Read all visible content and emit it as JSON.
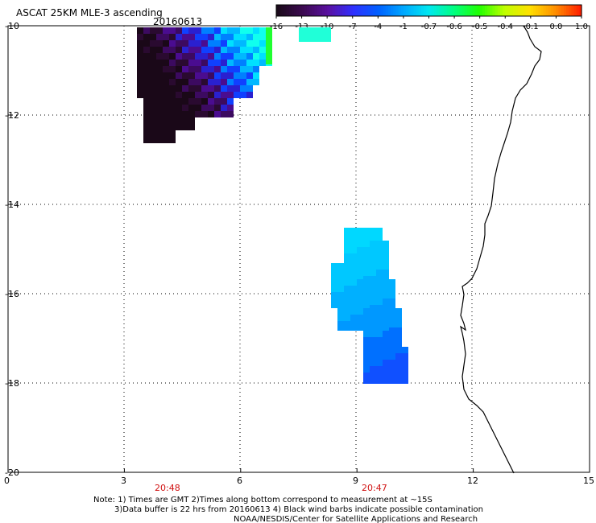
{
  "header": {
    "title": "ASCAT 25KM MLE-3 ascending",
    "date": "20160613"
  },
  "colorbar": {
    "labels": [
      "-16",
      "-13",
      "-10",
      "-7",
      "-4",
      "-1",
      "-0.7",
      "-0.6",
      "-0.5",
      "-0.4",
      "-0.1",
      "0.0",
      "1.0"
    ],
    "colors": [
      "#1a0a1a",
      "#3c0a50",
      "#5a10a0",
      "#3030ff",
      "#0060ff",
      "#00a8ff",
      "#00e8f0",
      "#00ff80",
      "#20ff00",
      "#c0ff00",
      "#ffe000",
      "#ff9000",
      "#ff2000"
    ]
  },
  "axes": {
    "y_ticks": [
      "-10",
      "-12",
      "-14",
      "-16",
      "-18",
      "-20"
    ],
    "x_ticks": [
      "0",
      "3",
      "6",
      "9",
      "12",
      "15"
    ]
  },
  "times": [
    "20:48",
    "20:47"
  ],
  "notes": {
    "line1": "Note: 1) Times are GMT 2)Times along bottom correspond to measurement at ~15S",
    "line2": "3)Data buffer is 22 hrs from 20160613 4) Black wind barbs indicate possible contamination",
    "line3": "NOAA/NESDIS/Center for Satellite Applications and Research"
  },
  "map_data": {
    "lon_range": [
      0,
      15
    ],
    "lat_range": [
      -20,
      -10
    ],
    "swaths": [
      {
        "name": "northwest-swath",
        "color_class": "mixed purple to cyan"
      },
      {
        "name": "southeast-swath",
        "color_class": "cyan to blue"
      }
    ],
    "coastline": "present"
  }
}
